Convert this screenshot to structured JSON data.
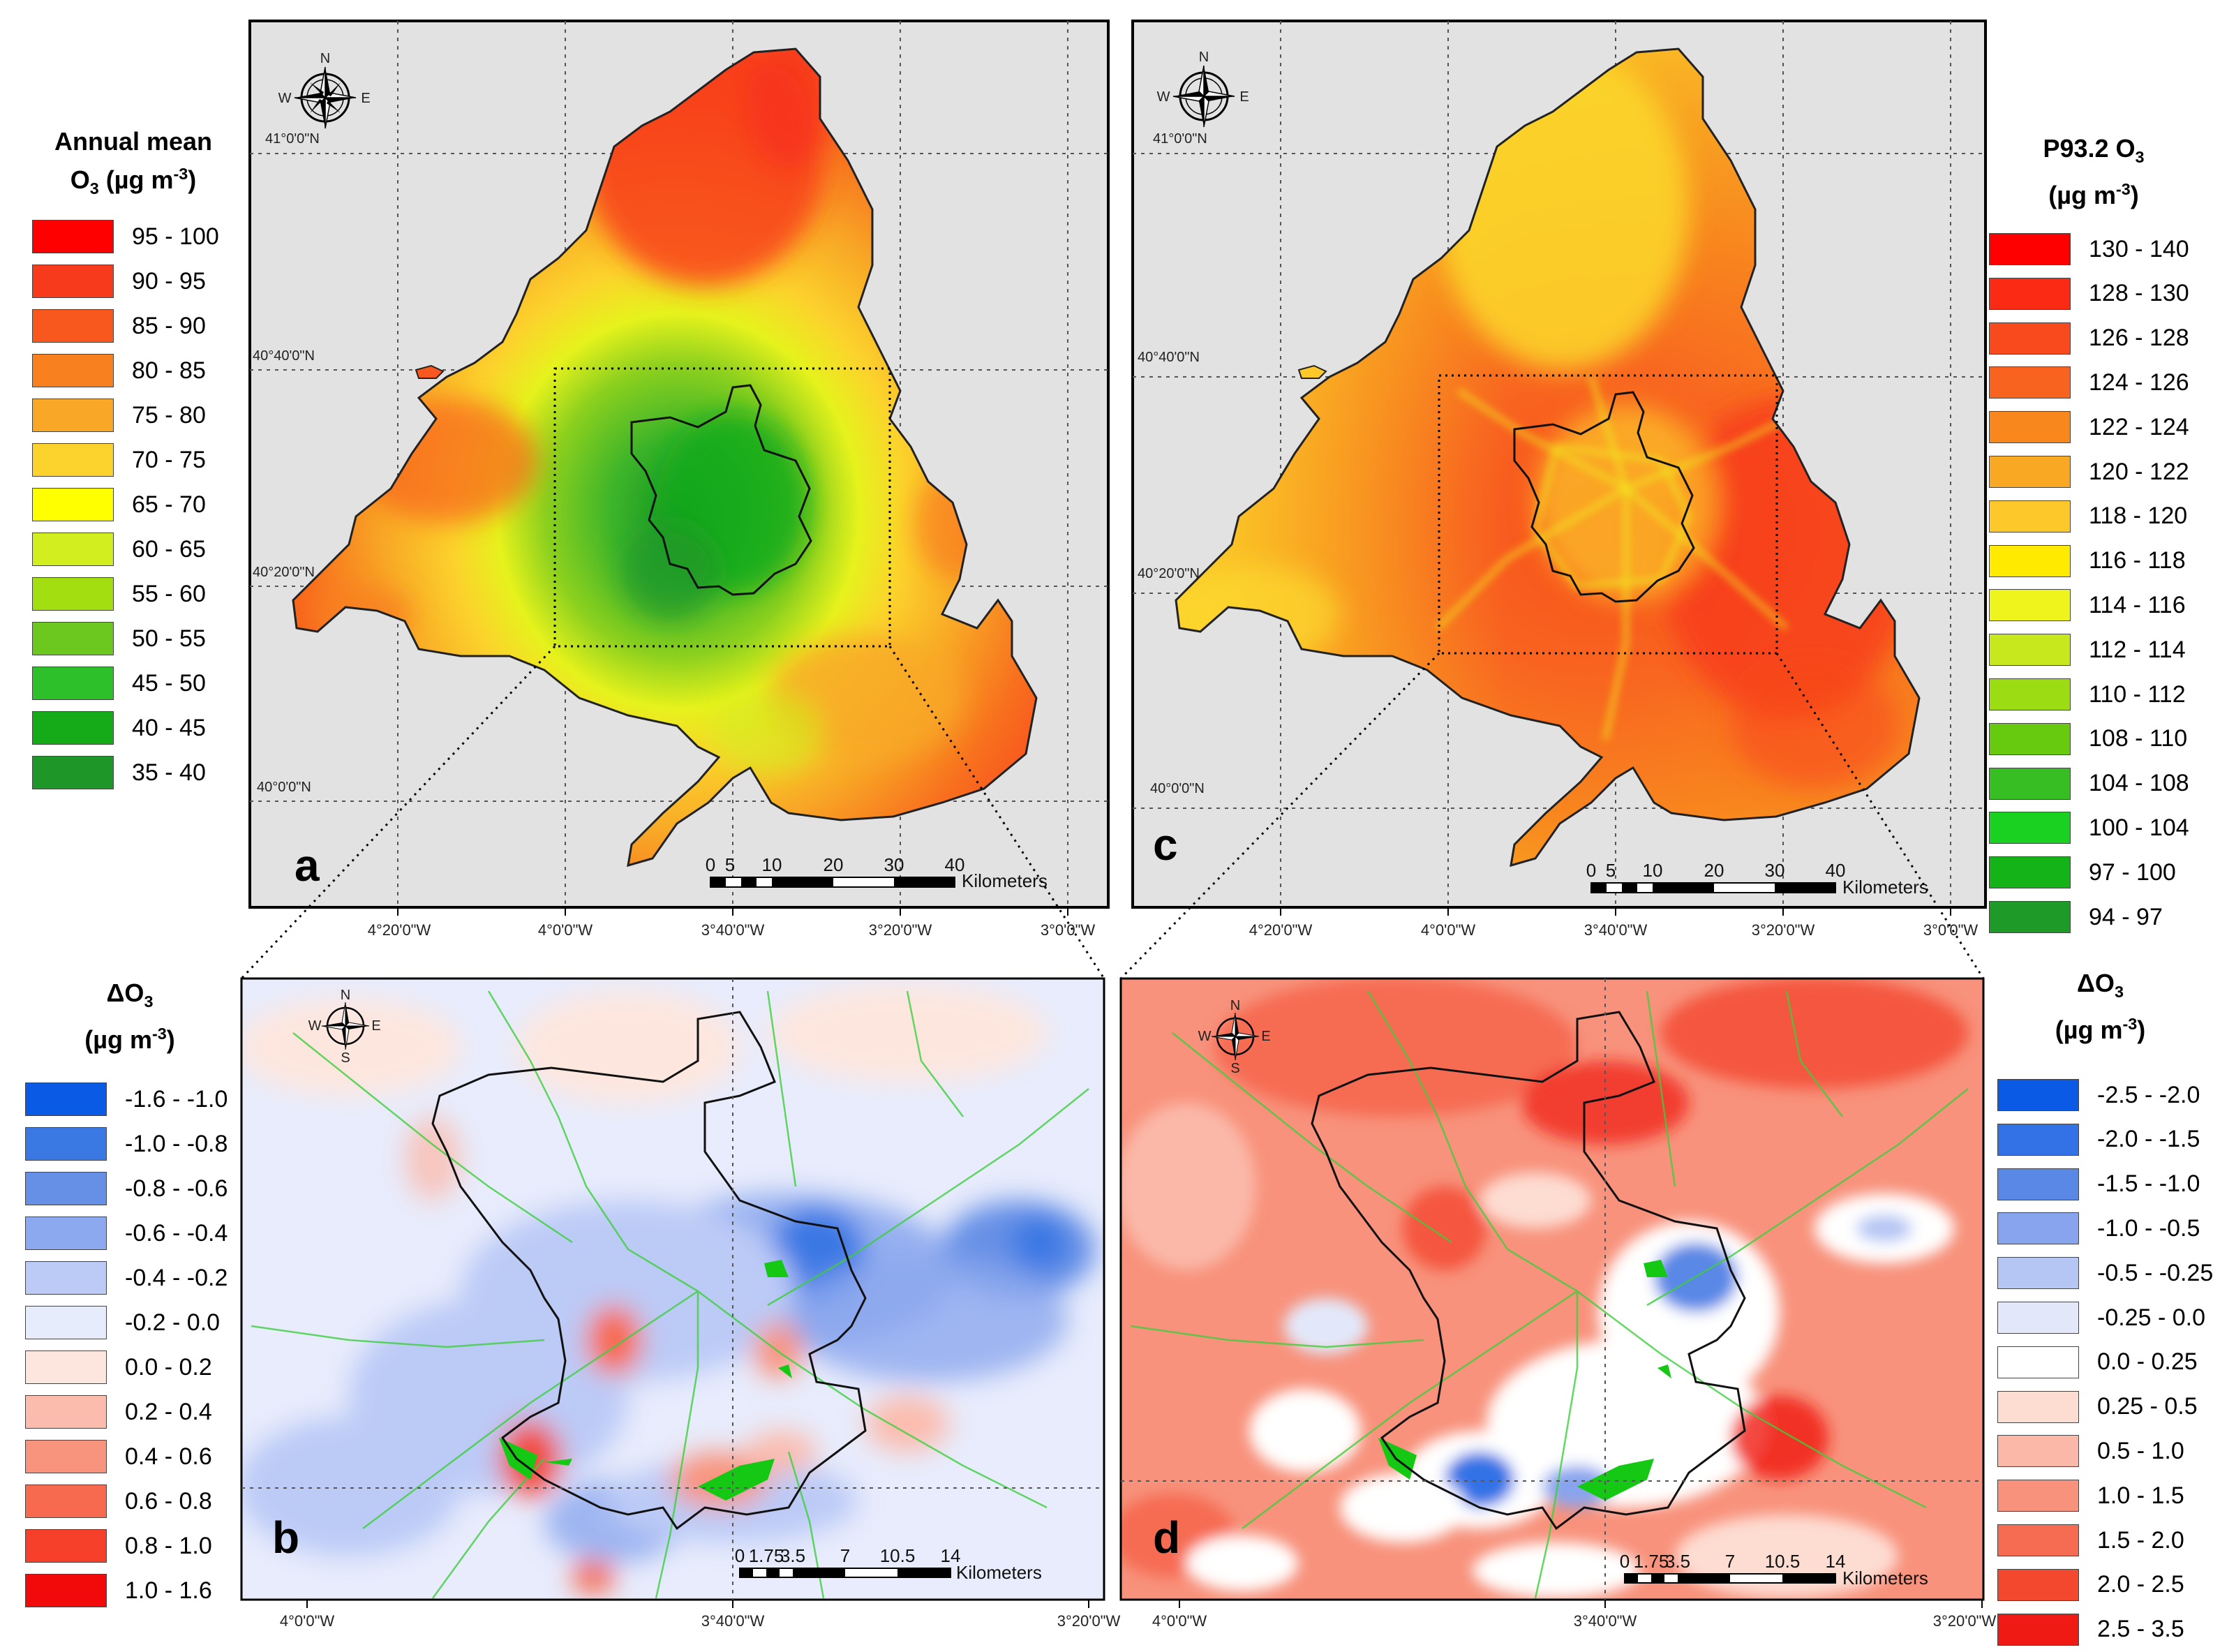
{
  "panels": {
    "a": {
      "label": "a"
    },
    "b": {
      "label": "b"
    },
    "c": {
      "label": "c"
    },
    "d": {
      "label": "d"
    }
  },
  "compass": {
    "n": "N",
    "s": "S",
    "e": "E",
    "w": "W",
    "icon": "compass-rose-icon"
  },
  "top_axis": {
    "lon_ticks": [
      "4°20'0\"W",
      "4°0'0\"W",
      "3°40'0\"W",
      "3°20'0\"W",
      "3°0'0\"W"
    ],
    "lat_ticks": [
      "41°0'0\"N",
      "40°40'0\"N",
      "40°20'0\"N",
      "40°0'0\"N"
    ]
  },
  "bottom_axis": {
    "lon_ticks": [
      "4°0'0\"W",
      "3°40'0\"W",
      "3°20'0\"W"
    ]
  },
  "scalebar_top": {
    "ticks": [
      "0",
      "5",
      "10",
      "20",
      "30",
      "40"
    ],
    "unit": "Kilometers"
  },
  "scalebar_bottom": {
    "ticks": [
      "0",
      "1.75",
      "3.5",
      "7",
      "10.5",
      "14"
    ],
    "unit": "Kilometers"
  },
  "legend_a": {
    "title_1": "Annual mean",
    "title_2_pre": "O",
    "title_2_sub": "3",
    "title_2_post": " (µg m",
    "title_2_sup": "-3",
    "title_2_end": ")",
    "items": [
      {
        "label": "95 - 100",
        "color": "#ff0000"
      },
      {
        "label": "90 - 95",
        "color": "#f83a1c"
      },
      {
        "label": "85 - 90",
        "color": "#f8581e"
      },
      {
        "label": "80 - 85",
        "color": "#f8801e"
      },
      {
        "label": "75 - 80",
        "color": "#f8a826"
      },
      {
        "label": "70 - 75",
        "color": "#fcd22c"
      },
      {
        "label": "65 - 70",
        "color": "#ffff00"
      },
      {
        "label": "60 - 65",
        "color": "#d2ee1e"
      },
      {
        "label": "55 - 60",
        "color": "#a2de10"
      },
      {
        "label": "50 - 55",
        "color": "#6cc81e"
      },
      {
        "label": "45 - 50",
        "color": "#2ec02a"
      },
      {
        "label": "40 - 45",
        "color": "#14aa18"
      },
      {
        "label": "35 - 40",
        "color": "#1e9628"
      }
    ]
  },
  "legend_c": {
    "title_1_pre": "P93.2 O",
    "title_1_sub": "3",
    "title_2_pre": "(µg m",
    "title_2_sup": "-3",
    "title_2_end": ")",
    "items": [
      {
        "label": "130 - 140",
        "color": "#ff0000"
      },
      {
        "label": "128 - 130",
        "color": "#fa2a14"
      },
      {
        "label": "126 - 128",
        "color": "#f84a1c"
      },
      {
        "label": "124 - 126",
        "color": "#f86420"
      },
      {
        "label": "122 - 124",
        "color": "#f8881e"
      },
      {
        "label": "120 - 122",
        "color": "#f8a822"
      },
      {
        "label": "118 - 120",
        "color": "#fcc82a"
      },
      {
        "label": "116 - 118",
        "color": "#ffea00"
      },
      {
        "label": "114 - 116",
        "color": "#eef41c"
      },
      {
        "label": "112 - 114",
        "color": "#c8e81e"
      },
      {
        "label": "110 - 112",
        "color": "#9cdc12"
      },
      {
        "label": "108 - 110",
        "color": "#68ca0e"
      },
      {
        "label": "104 - 108",
        "color": "#36be22"
      },
      {
        "label": "100 - 104",
        "color": "#1ad020"
      },
      {
        "label": "97 - 100",
        "color": "#14b418"
      },
      {
        "label": "94 - 97",
        "color": "#1e9a28"
      }
    ]
  },
  "legend_b": {
    "title_1_pre": "ΔO",
    "title_1_sub": "3",
    "title_2_pre": "(µg m",
    "title_2_sup": "-3",
    "title_2_end": ")",
    "items": [
      {
        "label": "-1.6 - -1.0",
        "color": "#0a5ae6"
      },
      {
        "label": "-1.0 - -0.8",
        "color": "#3a78e4"
      },
      {
        "label": "-0.8 - -0.6",
        "color": "#6690e6"
      },
      {
        "label": "-0.6 - -0.4",
        "color": "#8ca8ee"
      },
      {
        "label": "-0.4 - -0.2",
        "color": "#bccaf6"
      },
      {
        "label": "-0.2 - 0.0",
        "color": "#e6ecfc"
      },
      {
        "label": "0.0 - 0.2",
        "color": "#fde6de"
      },
      {
        "label": "0.2 - 0.4",
        "color": "#fbbcae"
      },
      {
        "label": "0.4 - 0.6",
        "color": "#f8947e"
      },
      {
        "label": "0.6 - 0.8",
        "color": "#f86a50"
      },
      {
        "label": "0.8 - 1.0",
        "color": "#f6402a"
      },
      {
        "label": "1.0 - 1.6",
        "color": "#f20a0a"
      }
    ]
  },
  "legend_d": {
    "title_1_pre": "ΔO",
    "title_1_sub": "3",
    "title_2_pre": "(µg m",
    "title_2_sup": "-3",
    "title_2_end": ")",
    "items": [
      {
        "label": "-2.5 - -2.0",
        "color": "#0a5ae6"
      },
      {
        "label": "-2.0 - -1.5",
        "color": "#3272e6"
      },
      {
        "label": "-1.5 - -1.0",
        "color": "#5a88e6"
      },
      {
        "label": "-1.0 - -0.5",
        "color": "#88a4ee"
      },
      {
        "label": "-0.5 - -0.25",
        "color": "#b6c6f4"
      },
      {
        "label": "-0.25 - 0.0",
        "color": "#e2e8fa"
      },
      {
        "label": "0.0 - 0.25",
        "color": "#ffffff"
      },
      {
        "label": "0.25 - 0.5",
        "color": "#fddcd2"
      },
      {
        "label": "0.5 - 1.0",
        "color": "#fbb8a8"
      },
      {
        "label": "1.0 - 1.5",
        "color": "#f8927c"
      },
      {
        "label": "1.5 - 2.0",
        "color": "#f66c52"
      },
      {
        "label": "2.0 - 2.5",
        "color": "#f4482e"
      },
      {
        "label": "2.5 - 3.5",
        "color": "#f01a14"
      }
    ]
  }
}
